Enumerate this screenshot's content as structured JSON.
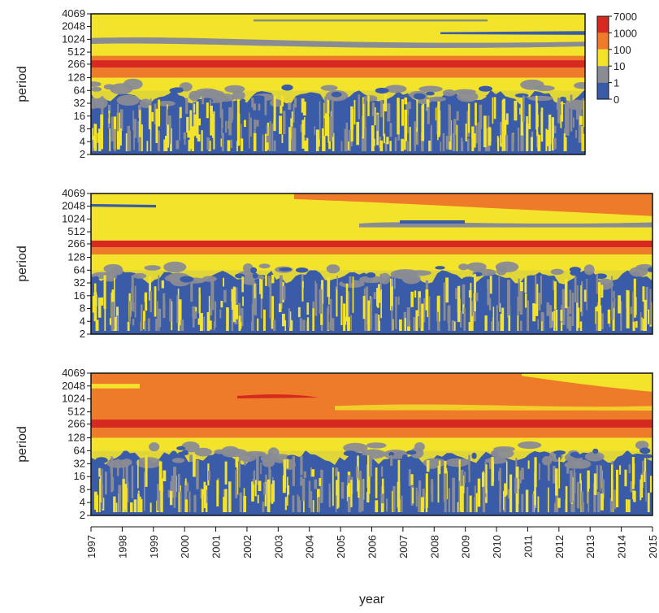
{
  "chart_data": [
    {
      "type": "heatmap",
      "panel": 1,
      "ylabel": "period",
      "y_ticks": [
        "2",
        "4",
        "8",
        "16",
        "32",
        "64",
        "128",
        "266",
        "512",
        "1024",
        "2048",
        "4069"
      ],
      "y_scale": "log2",
      "x_range": [
        1997,
        2015
      ],
      "bands": [
        {
          "from": 2,
          "to": 64,
          "level": "0-1",
          "streaks": "yellow/gray seasonal streaks"
        },
        {
          "from": 64,
          "to": 128,
          "level": "10-100"
        },
        {
          "from": 128,
          "to": 220,
          "level": "100-1000"
        },
        {
          "from": 220,
          "to": 330,
          "level": "1000-7000"
        },
        {
          "from": 330,
          "to": 420,
          "level": "100-1000"
        },
        {
          "from": 420,
          "to": 4069,
          "level": "10-100",
          "notes": "gray/blue stripes near 1024 and 3000"
        }
      ]
    },
    {
      "type": "heatmap",
      "panel": 2,
      "ylabel": "period",
      "y_ticks": [
        "2",
        "4",
        "8",
        "16",
        "32",
        "64",
        "128",
        "266",
        "512",
        "1024",
        "2048",
        "4069"
      ],
      "y_scale": "log2",
      "x_range": [
        1997,
        2015
      ],
      "bands": [
        {
          "from": 2,
          "to": 64,
          "level": "0-1",
          "streaks": "yellow/gray seasonal streaks"
        },
        {
          "from": 64,
          "to": 150,
          "level": "10-100"
        },
        {
          "from": 150,
          "to": 220,
          "level": "100-1000"
        },
        {
          "from": 220,
          "to": 320,
          "level": "1000-7000"
        },
        {
          "from": 320,
          "to": 4069,
          "level": "10-100",
          "notes": "orange (100-1000) band at long periods after 2005"
        }
      ]
    },
    {
      "type": "heatmap",
      "panel": 3,
      "ylabel": "period",
      "y_ticks": [
        "2",
        "4",
        "8",
        "16",
        "32",
        "64",
        "128",
        "266",
        "512",
        "1024",
        "2048",
        "4069"
      ],
      "y_scale": "log2",
      "x_range": [
        1997,
        2015
      ],
      "xlabel": "year",
      "x_ticks": [
        "1997",
        "1998",
        "1999",
        "2000",
        "2001",
        "2002",
        "2003",
        "2004",
        "2005",
        "2006",
        "2007",
        "2008",
        "2009",
        "2010",
        "2011",
        "2012",
        "2013",
        "2014",
        "2015"
      ],
      "bands": [
        {
          "from": 2,
          "to": 64,
          "level": "0-1",
          "streaks": "yellow/gray seasonal streaks"
        },
        {
          "from": 64,
          "to": 128,
          "level": "10-100"
        },
        {
          "from": 128,
          "to": 220,
          "level": "100-1000"
        },
        {
          "from": 220,
          "to": 340,
          "level": "1000-7000"
        },
        {
          "from": 340,
          "to": 4069,
          "level": "100-1000",
          "notes": "red patch near 1024 around 2002-2004"
        }
      ]
    }
  ],
  "legend": {
    "labels": [
      "7000",
      "1000",
      "100",
      "10",
      "1",
      "0"
    ],
    "colors": [
      "#d62a20",
      "#ee7b2a",
      "#f3e32b",
      "#8a8c93",
      "#3a5ba8"
    ]
  },
  "colors": {
    "very_low": "#3a5ba8",
    "low": "#8a8c93",
    "mid": "#f3e32b",
    "high": "#ee7b2a",
    "very_high": "#d62a20"
  }
}
